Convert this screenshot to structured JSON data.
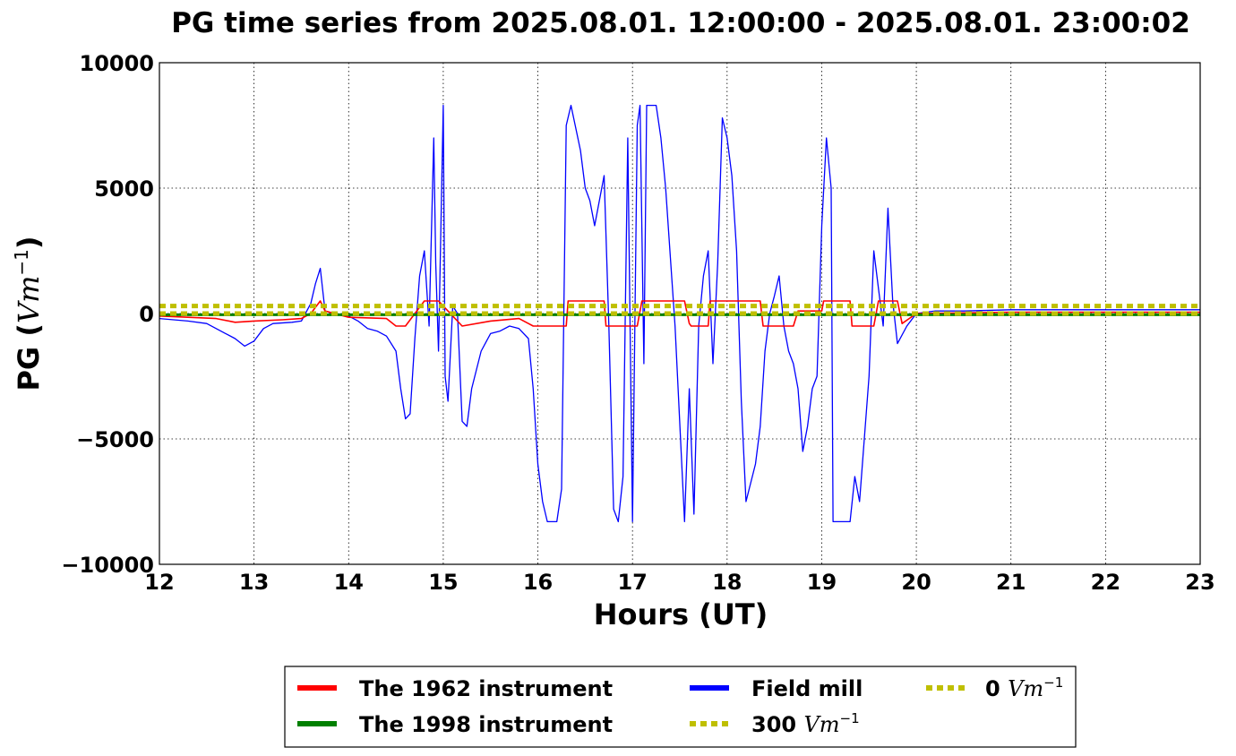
{
  "chart_data": {
    "type": "line",
    "title": "PG time series from 2025.08.01. 12:00:00 - 2025.08.01. 23:00:02",
    "xlabel": "Hours (UT)",
    "ylabel_prefix": "PG (",
    "ylabel_unit": "Vm",
    "ylabel_exp": "−1",
    "ylabel_suffix": ")",
    "xlim": [
      12,
      23
    ],
    "ylim": [
      -10000,
      10000
    ],
    "x_ticks": [
      "12",
      "13",
      "14",
      "15",
      "16",
      "17",
      "18",
      "19",
      "20",
      "21",
      "22",
      "23"
    ],
    "y_ticks": [
      "−10000",
      "−5000",
      "0",
      "5000",
      "10000"
    ],
    "y_tick_values": [
      -10000,
      -5000,
      0,
      5000,
      10000
    ],
    "grid": true,
    "legend_position": "bottom-center",
    "colors": {
      "red": "#ff0000",
      "green": "#008000",
      "blue": "#0000ff",
      "olive": "#bfbf00"
    },
    "legend": [
      {
        "name": "The 1962 instrument",
        "color": "#ff0000",
        "style": "solid"
      },
      {
        "name": "The 1998 instrument",
        "color": "#008000",
        "style": "solid"
      },
      {
        "name": "Field mill",
        "color": "#0000ff",
        "style": "solid"
      },
      {
        "name": "300 Vm",
        "unit_exp": "−1",
        "color": "#bfbf00",
        "style": "dashed"
      },
      {
        "name": "0 Vm",
        "unit_exp": "−1",
        "color": "#bfbf00",
        "style": "dashed"
      }
    ],
    "series": [
      {
        "name": "Field mill",
        "color": "#0000ff",
        "x": [
          12.0,
          12.3,
          12.5,
          12.7,
          12.8,
          12.9,
          13.0,
          13.1,
          13.2,
          13.4,
          13.5,
          13.6,
          13.65,
          13.7,
          13.75,
          13.85,
          14.0,
          14.1,
          14.2,
          14.3,
          14.4,
          14.5,
          14.55,
          14.6,
          14.65,
          14.7,
          14.75,
          14.8,
          14.85,
          14.9,
          14.92,
          14.95,
          15.0,
          15.02,
          15.05,
          15.1,
          15.15,
          15.2,
          15.25,
          15.3,
          15.4,
          15.5,
          15.6,
          15.7,
          15.8,
          15.9,
          15.95,
          16.0,
          16.05,
          16.1,
          16.2,
          16.25,
          16.3,
          16.35,
          16.45,
          16.5,
          16.55,
          16.6,
          16.7,
          16.75,
          16.8,
          16.85,
          16.9,
          16.95,
          17.0,
          17.05,
          17.08,
          17.12,
          17.15,
          17.2,
          17.25,
          17.3,
          17.35,
          17.45,
          17.55,
          17.6,
          17.65,
          17.7,
          17.75,
          17.8,
          17.85,
          17.9,
          17.95,
          18.0,
          18.05,
          18.1,
          18.15,
          18.2,
          18.3,
          18.35,
          18.4,
          18.45,
          18.5,
          18.55,
          18.6,
          18.65,
          18.7,
          18.75,
          18.8,
          18.85,
          18.9,
          18.95,
          19.0,
          19.05,
          19.1,
          19.12,
          19.2,
          19.3,
          19.35,
          19.4,
          19.45,
          19.5,
          19.55,
          19.6,
          19.65,
          19.7,
          19.75,
          19.8,
          19.9,
          20.0,
          20.2,
          20.5,
          21.0,
          22.0,
          23.0
        ],
        "values": [
          -200,
          -300,
          -400,
          -800,
          -1000,
          -1300,
          -1100,
          -600,
          -400,
          -350,
          -300,
          400,
          1200,
          1800,
          100,
          0,
          -100,
          -300,
          -600,
          -700,
          -900,
          -1500,
          -3000,
          -4200,
          -4000,
          -1000,
          1500,
          2500,
          -500,
          7000,
          2000,
          -1500,
          8300,
          -2500,
          -3500,
          300,
          0,
          -4300,
          -4500,
          -3000,
          -1500,
          -800,
          -700,
          -500,
          -600,
          -1000,
          -3000,
          -6000,
          -7500,
          -8300,
          -8300,
          -7000,
          7500,
          8300,
          6500,
          5000,
          4500,
          3500,
          5500,
          -500,
          -7800,
          -8300,
          -6500,
          7000,
          -8300,
          7500,
          8300,
          -2000,
          8300,
          8300,
          8300,
          7000,
          5000,
          -500,
          -8300,
          -3000,
          -8000,
          -500,
          1500,
          2500,
          -2000,
          2000,
          7800,
          7000,
          5500,
          2500,
          -3500,
          -7500,
          -6000,
          -4500,
          -1500,
          0,
          700,
          1500,
          -500,
          -1500,
          -2000,
          -3000,
          -5500,
          -4500,
          -3000,
          -2500,
          3500,
          7000,
          5000,
          -8300,
          -8300,
          -8300,
          -6500,
          -7500,
          -5000,
          -2500,
          2500,
          1000,
          -500,
          4200,
          500,
          -1200,
          -500,
          0,
          100,
          100,
          150,
          150,
          150
        ]
      },
      {
        "name": "The 1962 instrument",
        "color": "#ff0000",
        "x": [
          12.0,
          12.6,
          12.8,
          13.0,
          13.3,
          13.5,
          13.6,
          13.7,
          13.75,
          14.0,
          14.4,
          14.5,
          14.6,
          14.8,
          14.95,
          15.2,
          15.5,
          15.8,
          15.9,
          15.95,
          16.3,
          16.32,
          16.7,
          16.72,
          17.05,
          17.1,
          17.55,
          17.6,
          17.62,
          17.8,
          17.82,
          18.35,
          18.38,
          18.7,
          18.75,
          19.0,
          19.02,
          19.3,
          19.32,
          19.55,
          19.6,
          19.8,
          19.85,
          20.0,
          21.0,
          23.0
        ],
        "values": [
          -100,
          -200,
          -350,
          -300,
          -250,
          -200,
          0,
          500,
          100,
          -150,
          -200,
          -500,
          -500,
          500,
          500,
          -500,
          -300,
          -200,
          -400,
          -500,
          -500,
          500,
          500,
          -500,
          -500,
          500,
          500,
          -400,
          -500,
          -500,
          500,
          500,
          -500,
          -500,
          100,
          100,
          500,
          500,
          -500,
          -500,
          500,
          500,
          -400,
          0,
          50,
          50
        ]
      },
      {
        "name": "The 1998 instrument",
        "color": "#008000",
        "x": [
          12.0,
          23.0
        ],
        "values": [
          -50,
          -50
        ]
      },
      {
        "name": "300 Vm",
        "color": "#bfbf00",
        "x": [
          12.0,
          23.0
        ],
        "values": [
          300,
          300
        ]
      },
      {
        "name": "0 Vm",
        "color": "#bfbf00",
        "x": [
          12.0,
          23.0
        ],
        "values": [
          0,
          0
        ]
      }
    ]
  }
}
